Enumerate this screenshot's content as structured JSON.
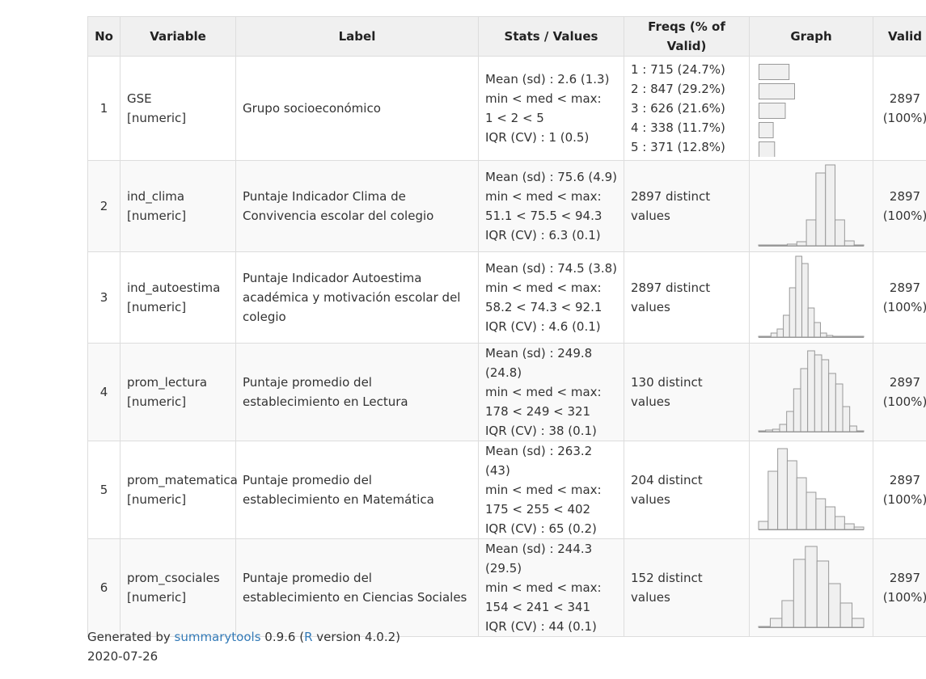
{
  "headers": [
    "No",
    "Variable",
    "Label",
    "Stats / Values",
    "Freqs (% of Valid)",
    "Graph",
    "Valid"
  ],
  "rows": [
    {
      "no": "1",
      "variable": "GSE",
      "type": "[numeric]",
      "label": "Grupo socioeconómico",
      "stats": [
        "Mean (sd) : 2.6 (1.3)",
        "min < med < max:",
        "1 < 2 < 5",
        "IQR (CV) : 1 (0.5)"
      ],
      "freqs": [
        "1 : 715 (24.7%)",
        "2 : 847 (29.2%)",
        "3 : 626 (21.6%)",
        "4 : 338 (11.7%)",
        "5 : 371 (12.8%)"
      ],
      "graph_type": "bars",
      "graph_values": [
        24.7,
        29.2,
        21.6,
        11.7,
        12.8
      ],
      "valid_n": "2897",
      "valid_pct": "(100%)"
    },
    {
      "no": "2",
      "variable": "ind_clima",
      "type": "[numeric]",
      "label": "Puntaje Indicador Clima de Convivencia escolar del colegio",
      "stats": [
        "Mean (sd) : 75.6 (4.9)",
        "min < med < max:",
        "51.1 < 75.5 < 94.3",
        "IQR (CV) : 6.3 (0.1)"
      ],
      "distinct": "2897 distinct values",
      "graph_type": "histogram",
      "graph_values": [
        1,
        1,
        1,
        2,
        5,
        32,
        90,
        100,
        32,
        6,
        1
      ],
      "valid_n": "2897",
      "valid_pct": "(100%)"
    },
    {
      "no": "3",
      "variable": "ind_autoestima",
      "type": "[numeric]",
      "label": "Puntaje Indicador Autoestima académica y motivación escolar del colegio",
      "stats": [
        "Mean (sd) : 74.5 (3.8)",
        "min < med < max:",
        "58.2 < 74.3 < 92.1",
        "IQR (CV) : 4.6 (0.1)"
      ],
      "distinct": "2897 distinct values",
      "graph_type": "histogram",
      "graph_values": [
        1,
        1,
        5,
        10,
        27,
        61,
        100,
        91,
        36,
        18,
        5,
        2,
        1,
        1,
        1,
        1,
        1
      ],
      "valid_n": "2897",
      "valid_pct": "(100%)"
    },
    {
      "no": "4",
      "variable": "prom_lectura",
      "type": "[numeric]",
      "label": "Puntaje promedio del establecimiento en Lectura",
      "stats": [
        "Mean (sd) : 249.8 (24.8)",
        "min < med < max:",
        "178 < 249 < 321",
        "IQR (CV) : 38 (0.1)"
      ],
      "distinct": "130 distinct values",
      "graph_type": "histogram",
      "graph_values": [
        1,
        2,
        3,
        9,
        25,
        53,
        78,
        100,
        95,
        89,
        72,
        59,
        31,
        7,
        1
      ],
      "valid_n": "2897",
      "valid_pct": "(100%)"
    },
    {
      "no": "5",
      "variable": "prom_matematica",
      "type": "[numeric]",
      "label": "Puntaje promedio del establecimiento en Matemática",
      "stats": [
        "Mean (sd) : 263.2 (43)",
        "min < med < max:",
        "175 < 255 < 402",
        "IQR (CV) : 65 (0.2)"
      ],
      "distinct": "204 distinct values",
      "graph_type": "histogram",
      "graph_values": [
        10,
        72,
        100,
        85,
        64,
        46,
        38,
        28,
        16,
        7,
        3
      ],
      "valid_n": "2897",
      "valid_pct": "(100%)"
    },
    {
      "no": "6",
      "variable": "prom_csociales",
      "type": "[numeric]",
      "label": "Puntaje promedio del establecimiento en Ciencias Sociales",
      "stats": [
        "Mean (sd) : 244.3 (29.5)",
        "min < med < max:",
        "154 < 241 < 341",
        "IQR (CV) : 44 (0.1)"
      ],
      "distinct": "152 distinct values",
      "graph_type": "histogram",
      "graph_values": [
        1,
        11,
        33,
        84,
        100,
        82,
        54,
        30,
        11
      ],
      "valid_n": "2897",
      "valid_pct": "(100%)"
    }
  ],
  "footer": {
    "generated_by": "Generated by ",
    "pkg_link": "summarytools",
    "pkg_version": " 0.9.6 (",
    "r_link": "R",
    "r_version": " version 4.0.2)",
    "date": "2020-07-26"
  },
  "colors": {
    "bar_fill": "#f0f0f0",
    "bar_stroke": "#999999",
    "link": "#337ab7",
    "header_bg": "#f0f0f0",
    "border": "#dddddd"
  }
}
